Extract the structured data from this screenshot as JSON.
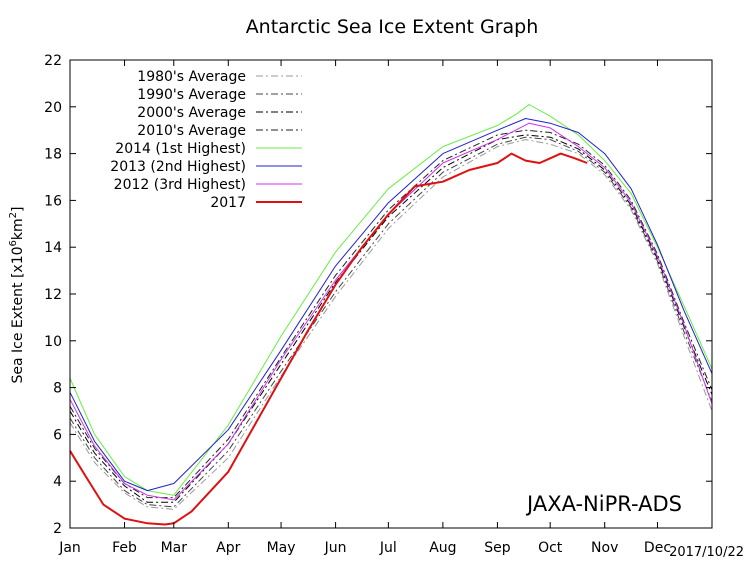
{
  "chart_data": {
    "type": "line",
    "title": "Antarctic Sea Ice Extent Graph",
    "ylabel_main": "Sea Ice Extent [x10",
    "ylabel_sup1": "6",
    "ylabel_mid": "km",
    "ylabel_sup2": "2",
    "ylabel_end": "]",
    "xlabel": "",
    "xlim": [
      1,
      366
    ],
    "ylim": [
      2,
      22
    ],
    "yticks": [
      2,
      4,
      6,
      8,
      10,
      12,
      14,
      16,
      18,
      20,
      22
    ],
    "xticks": [
      {
        "label": "Jan",
        "day": 1
      },
      {
        "label": "Feb",
        "day": 32
      },
      {
        "label": "Mar",
        "day": 60
      },
      {
        "label": "Apr",
        "day": 91
      },
      {
        "label": "May",
        "day": 121
      },
      {
        "label": "Jun",
        "day": 152
      },
      {
        "label": "Jul",
        "day": 182
      },
      {
        "label": "Aug",
        "day": 213
      },
      {
        "label": "Sep",
        "day": 244
      },
      {
        "label": "Oct",
        "day": 274
      },
      {
        "label": "Nov",
        "day": 305
      },
      {
        "label": "Dec",
        "day": 335
      }
    ],
    "date_stamp": "2017/10/22",
    "watermark": "JAXA-NiPR-ADS",
    "legend_position": "top-left",
    "grid": false,
    "series": [
      {
        "name": "1980's Average",
        "color": "#9a9a9a",
        "dash": "dashdot",
        "width": 1,
        "x": [
          1,
          15,
          32,
          45,
          60,
          91,
          121,
          152,
          182,
          213,
          244,
          260,
          274,
          290,
          305,
          320,
          335,
          350,
          366
        ],
        "y": [
          6.5,
          4.8,
          3.5,
          2.9,
          2.8,
          5.0,
          8.5,
          11.9,
          14.8,
          17.0,
          18.3,
          18.6,
          18.4,
          18.0,
          17.1,
          15.6,
          13.3,
          10.2,
          7.0
        ]
      },
      {
        "name": "1990's Average",
        "color": "#444444",
        "dash": "dashdot",
        "width": 1,
        "x": [
          1,
          15,
          32,
          45,
          60,
          91,
          121,
          152,
          182,
          213,
          244,
          260,
          274,
          290,
          305,
          320,
          335,
          350,
          366
        ],
        "y": [
          6.7,
          5.0,
          3.6,
          3.0,
          2.9,
          5.3,
          8.7,
          12.1,
          15.0,
          17.2,
          18.4,
          18.7,
          18.6,
          18.1,
          17.2,
          15.7,
          13.4,
          10.4,
          7.4
        ]
      },
      {
        "name": "2000's Average",
        "color": "#000000",
        "dash": "dashdot",
        "width": 1,
        "x": [
          1,
          15,
          32,
          45,
          60,
          91,
          121,
          152,
          182,
          213,
          244,
          260,
          274,
          290,
          305,
          320,
          335,
          350,
          366
        ],
        "y": [
          7.0,
          5.2,
          3.8,
          3.1,
          3.1,
          5.6,
          9.0,
          12.5,
          15.3,
          17.4,
          18.6,
          18.8,
          18.7,
          18.2,
          17.3,
          15.8,
          13.5,
          10.6,
          7.7
        ]
      },
      {
        "name": "2010's Average",
        "color": "#222222",
        "dash": "dashdot",
        "width": 1,
        "x": [
          1,
          15,
          32,
          45,
          60,
          91,
          121,
          152,
          182,
          213,
          244,
          260,
          274,
          290,
          305,
          320,
          335,
          350,
          366
        ],
        "y": [
          7.2,
          5.4,
          3.9,
          3.3,
          3.3,
          5.8,
          9.3,
          12.8,
          15.6,
          17.7,
          18.8,
          19.0,
          18.9,
          18.4,
          17.5,
          16.0,
          13.7,
          10.8,
          7.9
        ]
      },
      {
        "name": "2014 (1st Highest)",
        "color": "#66ee44",
        "dash": "solid",
        "width": 1,
        "x": [
          1,
          15,
          32,
          45,
          60,
          91,
          121,
          152,
          182,
          213,
          244,
          255,
          262,
          274,
          290,
          305,
          320,
          335,
          350,
          366
        ],
        "y": [
          8.4,
          6.0,
          4.2,
          3.6,
          3.4,
          6.4,
          10.2,
          13.8,
          16.5,
          18.3,
          19.2,
          19.7,
          20.1,
          19.6,
          18.8,
          17.7,
          16.3,
          14.0,
          11.5,
          8.8
        ]
      },
      {
        "name": "2013 (2nd Highest)",
        "color": "#2020cc",
        "dash": "solid",
        "width": 1,
        "x": [
          1,
          15,
          32,
          45,
          60,
          91,
          121,
          152,
          182,
          213,
          244,
          260,
          274,
          290,
          305,
          320,
          335,
          350,
          366
        ],
        "y": [
          7.8,
          5.7,
          4.0,
          3.6,
          3.9,
          6.2,
          9.6,
          13.2,
          15.9,
          18.0,
          19.0,
          19.5,
          19.3,
          18.9,
          18.0,
          16.5,
          14.1,
          11.3,
          8.6
        ]
      },
      {
        "name": "2012 (3rd Highest)",
        "color": "#cc33ee",
        "dash": "solid",
        "width": 1,
        "x": [
          1,
          15,
          32,
          45,
          60,
          91,
          121,
          152,
          182,
          213,
          244,
          262,
          274,
          290,
          305,
          320,
          335,
          350,
          366
        ],
        "y": [
          7.5,
          5.5,
          3.9,
          3.4,
          3.2,
          5.6,
          9.2,
          12.6,
          15.4,
          17.6,
          18.6,
          19.3,
          19.1,
          18.3,
          17.4,
          15.9,
          13.6,
          10.7,
          7.3
        ]
      },
      {
        "name": "2017",
        "color": "#dd1111",
        "dash": "solid",
        "width": 2,
        "x": [
          1,
          10,
          20,
          32,
          45,
          55,
          60,
          70,
          91,
          106,
          121,
          136,
          152,
          167,
          182,
          197,
          213,
          228,
          244,
          252,
          260,
          268,
          274,
          280,
          288,
          295
        ],
        "y": [
          5.3,
          4.2,
          3.0,
          2.4,
          2.2,
          2.15,
          2.2,
          2.7,
          4.4,
          6.4,
          8.4,
          10.4,
          12.4,
          14.0,
          15.4,
          16.6,
          16.8,
          17.3,
          17.6,
          18.0,
          17.7,
          17.6,
          17.8,
          18.0,
          17.8,
          17.6
        ]
      }
    ]
  }
}
